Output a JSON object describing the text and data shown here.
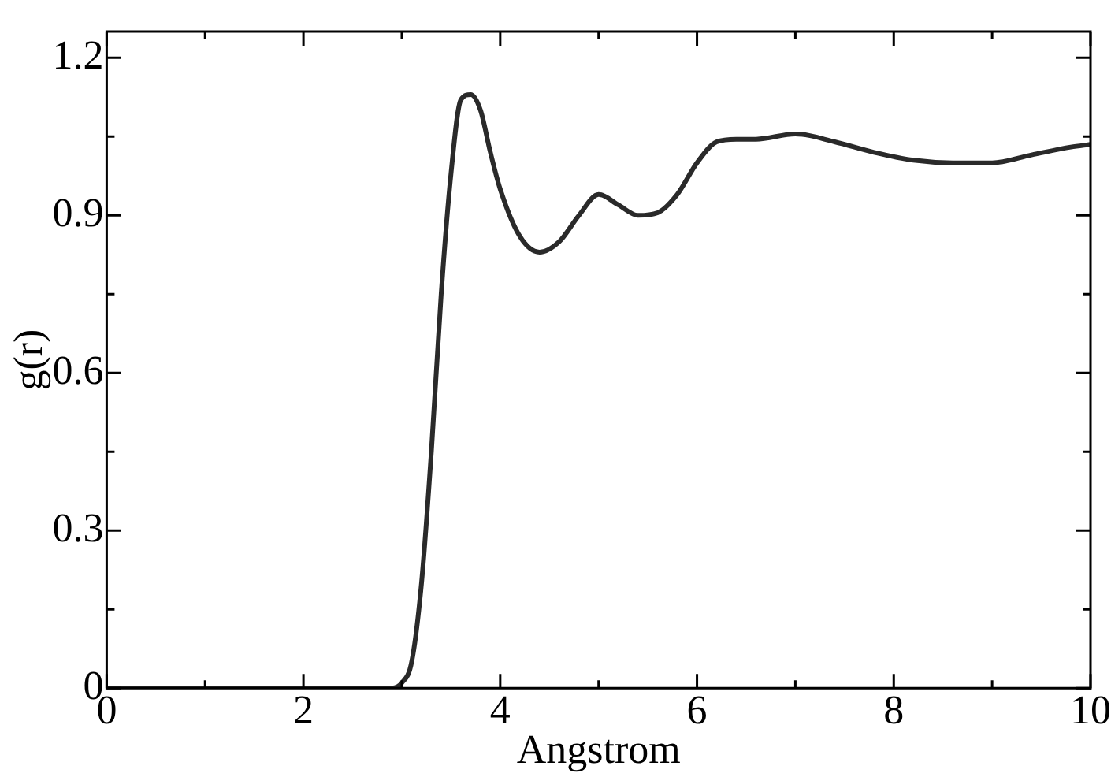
{
  "chart_data": {
    "type": "line",
    "xlabel": "Angstrom",
    "ylabel": "g(r)",
    "grid": false,
    "legend": false,
    "marker": "none",
    "line_style": "solid",
    "xlim": [
      0,
      10
    ],
    "ylim": [
      0,
      1.25
    ],
    "xticks": [
      0,
      {
        "value": 1,
        "label": null
      },
      2,
      {
        "value": 3,
        "label": null
      },
      4,
      {
        "value": 5,
        "label": null
      },
      6,
      {
        "value": 7,
        "label": null
      },
      8,
      {
        "value": 9,
        "label": null
      },
      10
    ],
    "yticks": [
      0,
      {
        "value": 0.15,
        "label": null
      },
      0.3,
      {
        "value": 0.45,
        "label": null
      },
      0.6,
      {
        "value": 0.75,
        "label": null
      },
      0.9,
      {
        "value": 1.05,
        "label": null
      },
      1.2
    ],
    "series": [
      {
        "color": "#2a2a2a",
        "x": [
          0,
          2.9,
          3.0,
          3.1,
          3.2,
          3.3,
          3.4,
          3.5,
          3.6,
          3.7,
          3.8,
          3.9,
          4.0,
          4.2,
          4.4,
          4.6,
          4.8,
          5.0,
          5.2,
          5.4,
          5.6,
          5.8,
          6.0,
          6.2,
          6.4,
          6.6,
          7.0,
          7.4,
          7.8,
          8.2,
          8.6,
          9.0,
          9.4,
          9.8,
          10
        ],
        "values": [
          0,
          0,
          0.01,
          0.05,
          0.2,
          0.45,
          0.75,
          0.98,
          1.12,
          1.13,
          1.1,
          1.02,
          0.95,
          0.86,
          0.83,
          0.85,
          0.9,
          0.94,
          0.92,
          0.9,
          0.905,
          0.94,
          1.0,
          1.04,
          1.045,
          1.045,
          1.055,
          1.04,
          1.02,
          1.005,
          1.0,
          1.0,
          1.015,
          1.03,
          1.035
        ]
      }
    ]
  }
}
